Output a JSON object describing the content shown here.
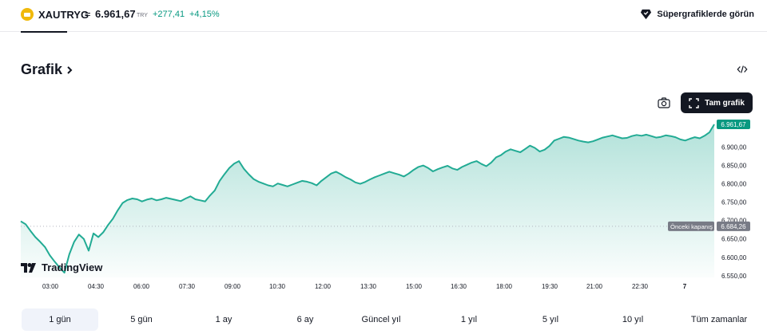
{
  "header": {
    "symbol": "XAUTRYG",
    "separator": "=",
    "price": "6.961,67",
    "currency": "TRY",
    "change": "+277,41",
    "change_percent": "+4,15%",
    "supercharts_label": "Süpergrafiklerde görün"
  },
  "section": {
    "title": "Grafik"
  },
  "toolbar": {
    "fullscreen_label": "Tam grafik"
  },
  "brand": {
    "tradingview": "TradingView"
  },
  "colors": {
    "line": "#22ab94",
    "positive": "#089981",
    "price_tag": "#089981",
    "prev_close_tag": "#787b86"
  },
  "chart_data": {
    "type": "area",
    "y_ticks": [
      "6.900,00",
      "6.850,00",
      "6.800,00",
      "6.750,00",
      "6.700,00",
      "6.650,00",
      "6.600,00",
      "6.550,00"
    ],
    "x_ticks": [
      "03:00",
      "04:30",
      "06:00",
      "07:30",
      "09:00",
      "10:30",
      "12:00",
      "13:30",
      "15:00",
      "16:30",
      "18:00",
      "19:30",
      "21:00",
      "22:30",
      "7"
    ],
    "last_price_label": "6.961,67",
    "prev_close_text": "Önceki kapanış",
    "prev_close_value": "6.684,26",
    "ylim": [
      6530,
      6975
    ],
    "prev_close": 6684.26,
    "series": [
      {
        "x": [
          0,
          1,
          2,
          3,
          4,
          5,
          6,
          7,
          8,
          9,
          10,
          11,
          12,
          13,
          14,
          15,
          16,
          17,
          18,
          19,
          20,
          21,
          22,
          23,
          24,
          25,
          26,
          27,
          28,
          29,
          30,
          31,
          32,
          33,
          34,
          35,
          36,
          37,
          38,
          39,
          40,
          41,
          42,
          43,
          44,
          45,
          46,
          47,
          48,
          49,
          50,
          51,
          52,
          53,
          54,
          55,
          56,
          57,
          58,
          59,
          60,
          61,
          62,
          63,
          64,
          65,
          66,
          67,
          68,
          69,
          70,
          71,
          72,
          73,
          74,
          75,
          76,
          77,
          78,
          79,
          80,
          81,
          82,
          83,
          84,
          85,
          86,
          87,
          88,
          89,
          90,
          91,
          92,
          93,
          94,
          95,
          96,
          97,
          98,
          99,
          100,
          101,
          102,
          103,
          104,
          105,
          106,
          107,
          108,
          109,
          110,
          111,
          112,
          113,
          114,
          115,
          116,
          117,
          118,
          119,
          120,
          121,
          122,
          123,
          124,
          125,
          126,
          127,
          128,
          129,
          130,
          131,
          132,
          133,
          134,
          135,
          136,
          137,
          138,
          139,
          140,
          141,
          142,
          143
        ],
        "values": [
          6698,
          6690,
          6672,
          6655,
          6642,
          6628,
          6605,
          6588,
          6572,
          6558,
          6608,
          6642,
          6662,
          6650,
          6618,
          6665,
          6655,
          6668,
          6688,
          6705,
          6728,
          6748,
          6756,
          6760,
          6758,
          6752,
          6757,
          6760,
          6755,
          6758,
          6762,
          6759,
          6756,
          6753,
          6760,
          6766,
          6758,
          6755,
          6752,
          6768,
          6782,
          6808,
          6826,
          6843,
          6855,
          6862,
          6841,
          6826,
          6813,
          6806,
          6801,
          6796,
          6793,
          6801,
          6797,
          6793,
          6798,
          6803,
          6808,
          6806,
          6802,
          6796,
          6808,
          6818,
          6828,
          6833,
          6826,
          6818,
          6812,
          6804,
          6800,
          6805,
          6812,
          6818,
          6823,
          6828,
          6833,
          6829,
          6825,
          6820,
          6828,
          6838,
          6846,
          6850,
          6843,
          6834,
          6840,
          6845,
          6849,
          6842,
          6838,
          6846,
          6852,
          6858,
          6862,
          6854,
          6848,
          6858,
          6872,
          6878,
          6888,
          6894,
          6890,
          6886,
          6895,
          6904,
          6898,
          6888,
          6893,
          6903,
          6918,
          6923,
          6928,
          6926,
          6922,
          6918,
          6915,
          6913,
          6916,
          6921,
          6926,
          6929,
          6932,
          6928,
          6924,
          6925,
          6930,
          6933,
          6931,
          6934,
          6930,
          6926,
          6928,
          6932,
          6930,
          6927,
          6921,
          6918,
          6923,
          6927,
          6924,
          6931,
          6940,
          6962
        ]
      }
    ]
  },
  "ranges": [
    {
      "label": "1 gün",
      "active": true
    },
    {
      "label": "5 gün",
      "active": false
    },
    {
      "label": "1 ay",
      "active": false
    },
    {
      "label": "6 ay",
      "active": false
    },
    {
      "label": "Güncel yıl",
      "active": false
    },
    {
      "label": "1 yıl",
      "active": false
    },
    {
      "label": "5 yıl",
      "active": false
    },
    {
      "label": "10 yıl",
      "active": false
    },
    {
      "label": "Tüm zamanlar",
      "active": false
    }
  ]
}
